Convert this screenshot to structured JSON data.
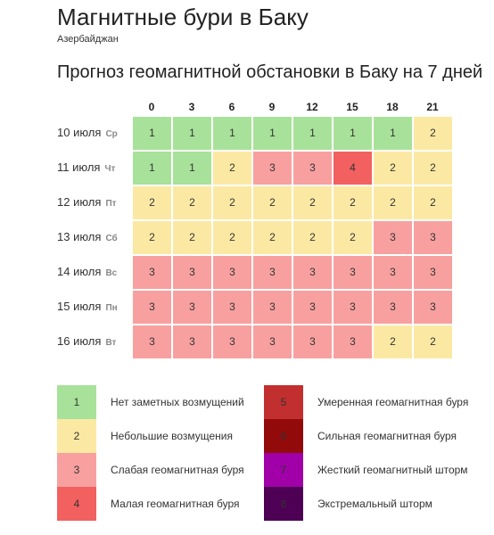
{
  "header": {
    "title": "Магнитные бури в Баку",
    "subtitle": "Азербайджан",
    "forecast_heading": "Прогноз геомагнитной обстановки в Баку на 7 дней"
  },
  "hours": [
    "0",
    "3",
    "6",
    "9",
    "12",
    "15",
    "18",
    "21"
  ],
  "days": [
    {
      "date": "10 июля",
      "dow": "Ср",
      "values": [
        "1",
        "1",
        "1",
        "1",
        "1",
        "1",
        "1",
        "2"
      ]
    },
    {
      "date": "11 июля",
      "dow": "Чт",
      "values": [
        "1",
        "1",
        "2",
        "3",
        "3",
        "4",
        "2",
        "2"
      ]
    },
    {
      "date": "12 июля",
      "dow": "Пт",
      "values": [
        "2",
        "2",
        "2",
        "2",
        "2",
        "2",
        "2",
        "2"
      ]
    },
    {
      "date": "13 июля",
      "dow": "Сб",
      "values": [
        "2",
        "2",
        "2",
        "2",
        "2",
        "2",
        "3",
        "3"
      ]
    },
    {
      "date": "14 июля",
      "dow": "Вс",
      "values": [
        "3",
        "3",
        "3",
        "3",
        "3",
        "3",
        "3",
        "3"
      ]
    },
    {
      "date": "15 июля",
      "dow": "Пн",
      "values": [
        "3",
        "3",
        "3",
        "3",
        "3",
        "3",
        "3",
        "3"
      ]
    },
    {
      "date": "16 июля",
      "dow": "Вт",
      "values": [
        "3",
        "3",
        "3",
        "3",
        "3",
        "3",
        "2",
        "2"
      ]
    }
  ],
  "level_colors": {
    "1": "#a8e29a",
    "2": "#fbe9a3",
    "3": "#f8a0a0",
    "4": "#f26060",
    "5": "#c22f2f",
    "6": "#930a0a",
    "7": "#a100a8",
    "8": "#4d0054"
  },
  "legend": [
    {
      "level": "1",
      "label": "Нет заметных возмущений"
    },
    {
      "level": "2",
      "label": "Небольшие возмущения"
    },
    {
      "level": "3",
      "label": "Слабая геомагнитная буря"
    },
    {
      "level": "4",
      "label": "Малая геомагнитная буря"
    },
    {
      "level": "5",
      "label": "Умеренная геомагнитная буря"
    },
    {
      "level": "6",
      "label": "Сильная геомагнитная буря"
    },
    {
      "level": "7",
      "label": "Жесткий геомагнитный шторм"
    },
    {
      "level": "8",
      "label": "Экстремальный шторм"
    }
  ]
}
